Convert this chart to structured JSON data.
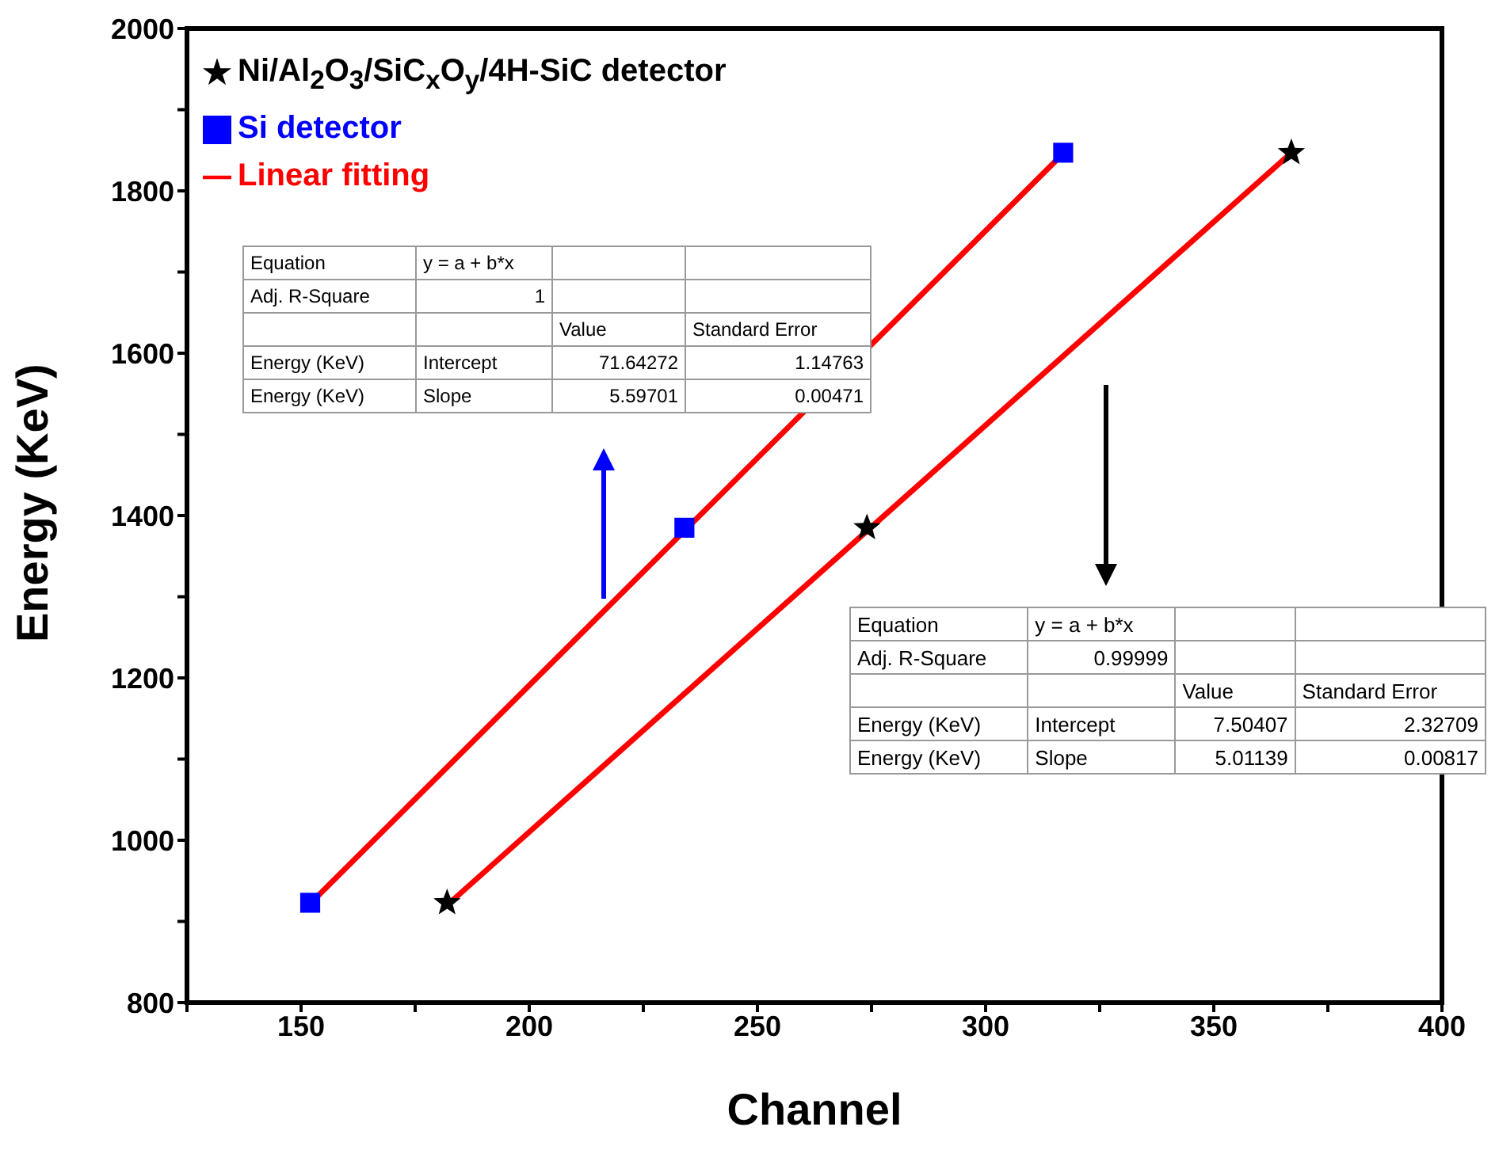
{
  "chart_data": {
    "type": "scatter",
    "xlabel": "Channel",
    "ylabel": "Energy (KeV)",
    "xlim": [
      125,
      400
    ],
    "xticks": [
      {
        "value": 125,
        "label": null
      },
      150,
      {
        "value": 175,
        "label": null
      },
      200,
      {
        "value": 225,
        "label": null
      },
      250,
      {
        "value": 275,
        "label": null
      },
      300,
      {
        "value": 325,
        "label": null
      },
      350,
      {
        "value": 375,
        "label": null
      },
      400
    ],
    "ylim": [
      800,
      2000
    ],
    "yticks": [
      800,
      {
        "value": 900,
        "label": null
      },
      1000,
      {
        "value": 1100,
        "label": null
      },
      1200,
      {
        "value": 1300,
        "label": null
      },
      1400,
      {
        "value": 1500,
        "label": null
      },
      1600,
      {
        "value": 1700,
        "label": null
      },
      1800,
      {
        "value": 1900,
        "label": null
      },
      2000
    ],
    "grid": false,
    "legend": "top left",
    "series": [
      {
        "name": "Ni/Al$_{2}$O$_{3}$/SiC$_{x}$O$_{y}$/4H-SiC detector",
        "type": "scatter",
        "marker": "star",
        "color": "#000000",
        "x": [
          182,
          274,
          367
        ],
        "values": [
          923,
          1385,
          1847
        ]
      },
      {
        "name": "Si detector",
        "type": "scatter",
        "marker": "square",
        "color": "#0000ff",
        "x": [
          152,
          234,
          317
        ],
        "values": [
          923,
          1385,
          1847
        ]
      },
      {
        "name": "Linear fitting",
        "type": "line",
        "marker": "none",
        "color": "#ff0000",
        "x": [
          152,
          317
        ],
        "values": [
          922,
          1846
        ]
      },
      {
        "type": "line",
        "marker": "none",
        "color": "#ff0000",
        "x": [
          182,
          367
        ],
        "values": [
          920,
          1847
        ]
      }
    ],
    "annotations": [
      "Equation",
      "y = a + b*x",
      "Adj. R-Square",
      "1",
      "Value",
      "Standard Error",
      "Energy (KeV)",
      "Intercept",
      "71.64272",
      "1.14763",
      "Energy (KeV)",
      "Slope",
      "5.59701",
      "0.00471",
      "Equation",
      "y = a  + b*x",
      "Adj. R-Square",
      "0.99999",
      "Value",
      "Standard Error",
      "Energy (KeV)",
      "Intercept",
      "7.50407",
      "2.32709",
      "Energy (KeV)",
      "Slope",
      "5.01139",
      "0.00817"
    ]
  }
}
